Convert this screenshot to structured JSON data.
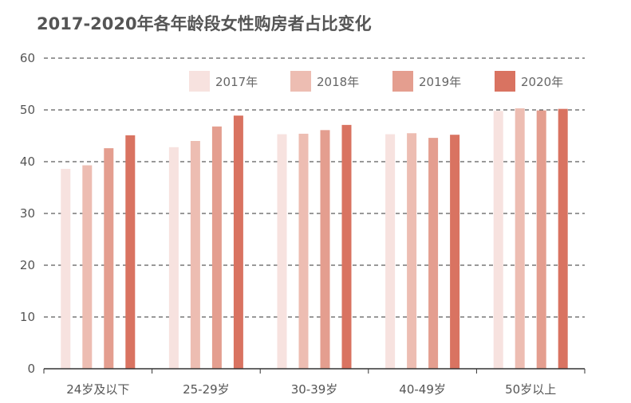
{
  "chart_data": {
    "type": "bar",
    "title": "2017-2020年各年龄段女性购房者占比变化",
    "xlabel": "",
    "ylabel": "",
    "ylim": [
      0,
      60
    ],
    "yticks": [
      0,
      10,
      20,
      30,
      40,
      50,
      60
    ],
    "grid": "dashed-horizontal",
    "legend_position": "top-right",
    "categories": [
      "24岁及以下",
      "25-29岁",
      "30-39岁",
      "40-49岁",
      "50岁以上"
    ],
    "series": [
      {
        "name": "2017年",
        "color": "#f7e2df",
        "values": [
          38.6,
          42.8,
          45.3,
          45.3,
          49.8
        ]
      },
      {
        "name": "2018年",
        "color": "#edbdb2",
        "values": [
          39.3,
          44.0,
          45.4,
          45.5,
          50.3
        ]
      },
      {
        "name": "2019年",
        "color": "#e49e8f",
        "values": [
          42.6,
          46.8,
          46.1,
          44.6,
          49.9
        ]
      },
      {
        "name": "2020年",
        "color": "#d97361",
        "values": [
          45.1,
          48.9,
          47.1,
          45.2,
          50.2
        ]
      }
    ]
  }
}
